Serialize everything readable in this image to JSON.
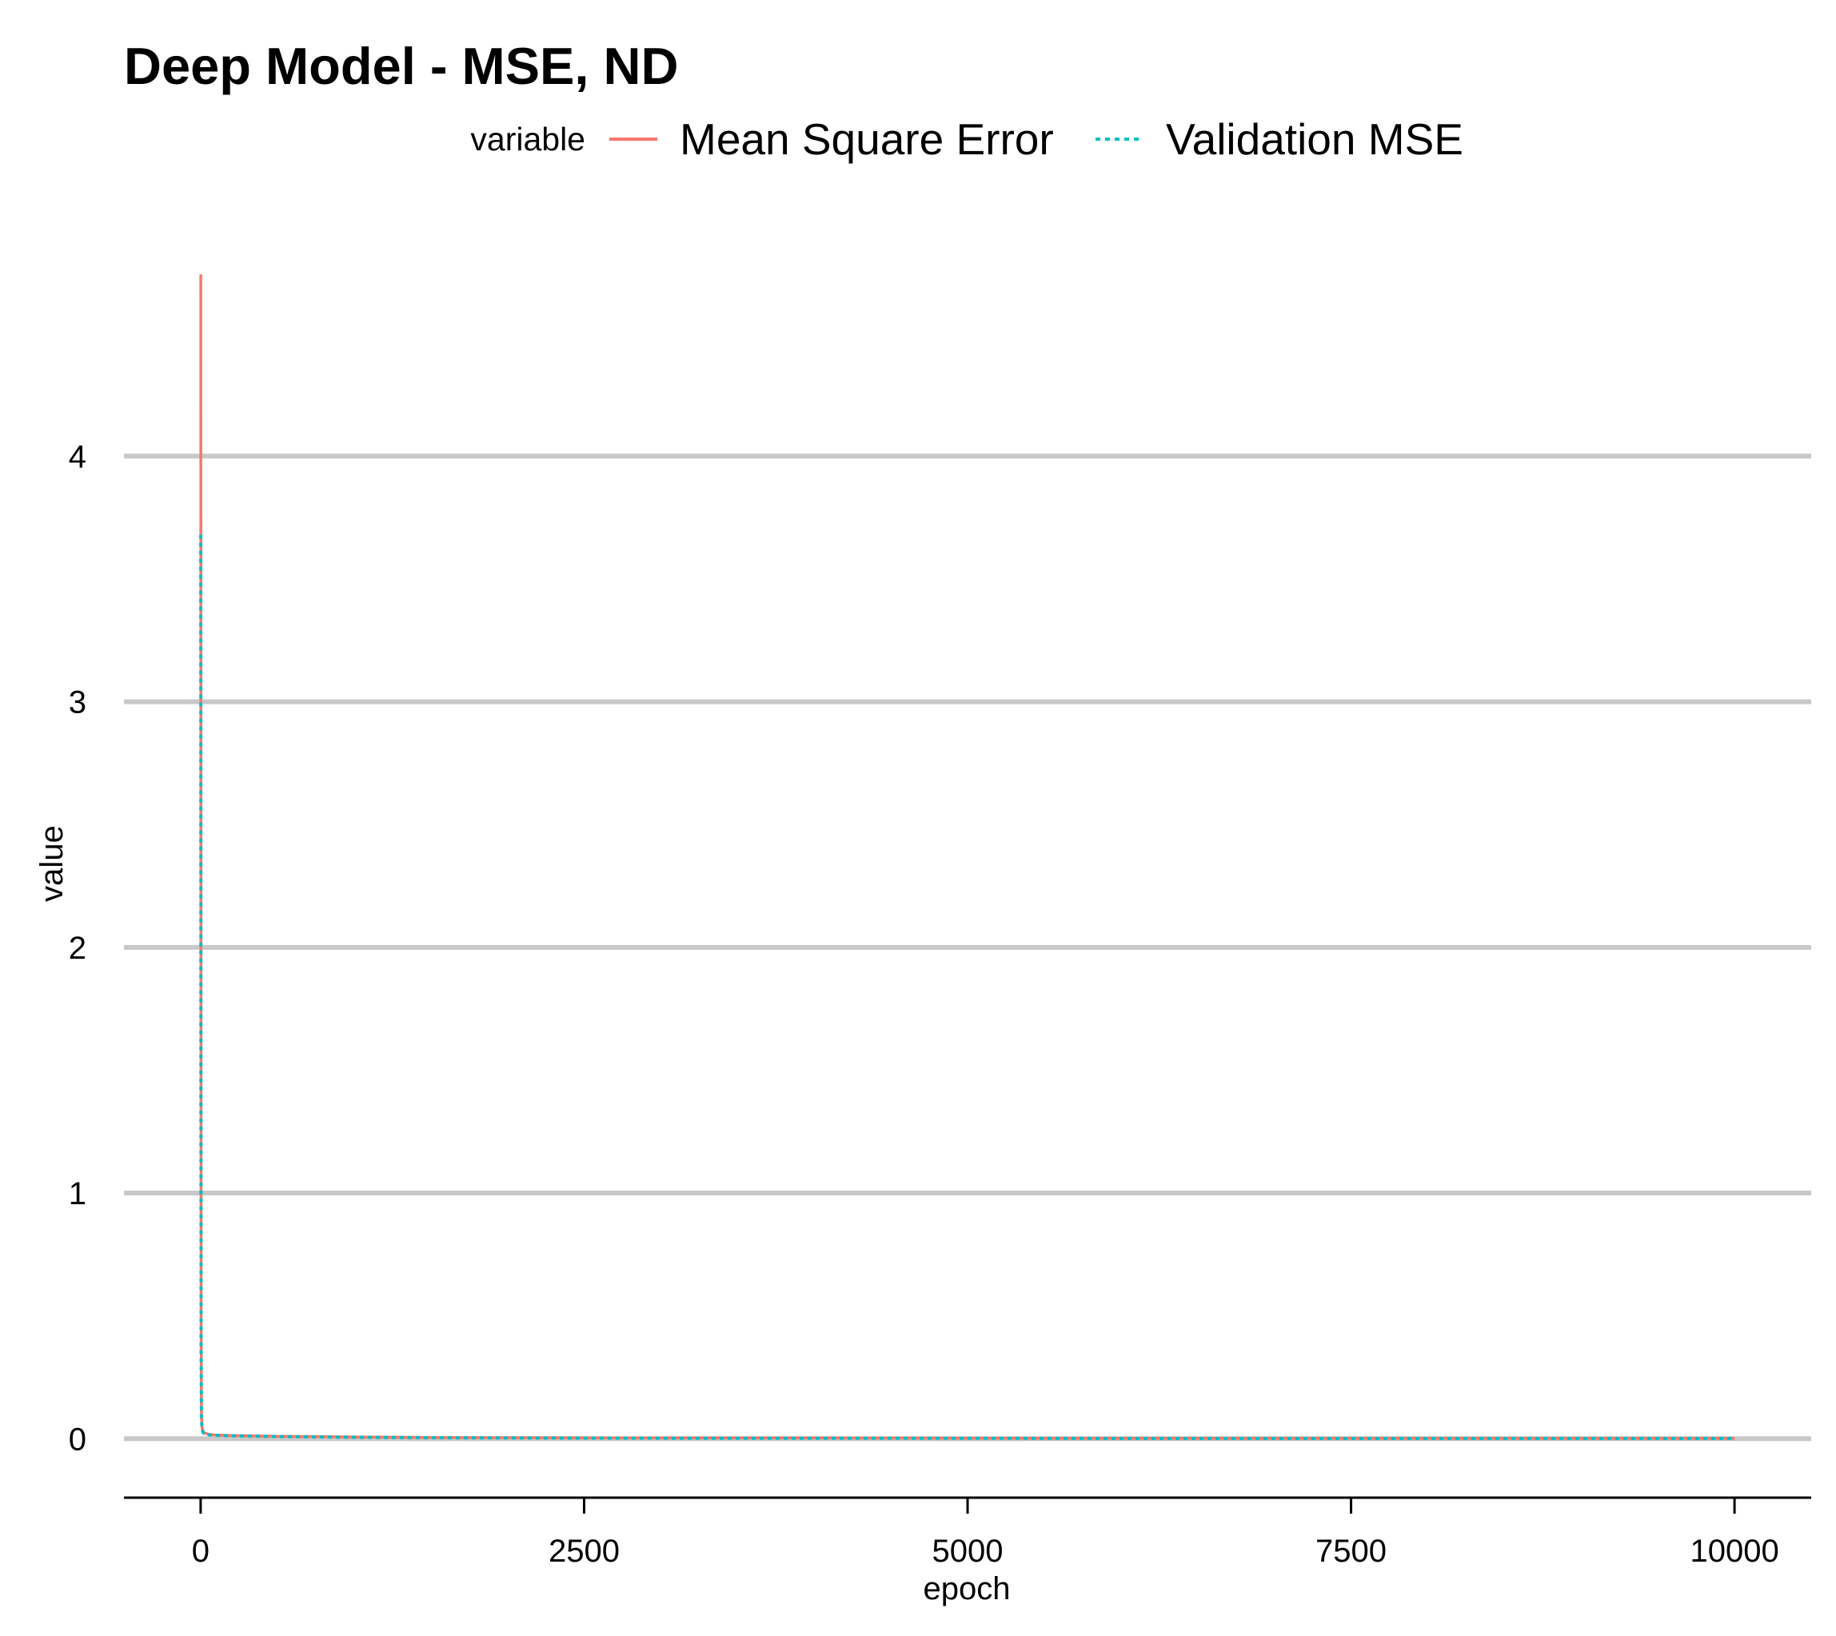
{
  "chart_data": {
    "type": "line",
    "title": "Deep Model - MSE, ND",
    "xlabel": "epoch",
    "ylabel": "value",
    "xlim": [
      -500,
      10500
    ],
    "ylim": [
      -0.24,
      4.75
    ],
    "x_ticks": [
      0,
      2500,
      5000,
      7500,
      10000
    ],
    "y_ticks": [
      0,
      1,
      2,
      3,
      4
    ],
    "grid": "horizontal major",
    "legend": {
      "title": "variable",
      "placement": "top"
    },
    "colors": {
      "mse": "#F8766D",
      "val": "#00BFC4",
      "grid": "#C8C8C8",
      "axis": "#000000"
    },
    "series": [
      {
        "name": "Mean Square Error",
        "style": "solid",
        "x": [
          1,
          2,
          3,
          5,
          10,
          20,
          50,
          100,
          200,
          300,
          500,
          800,
          1000,
          1500,
          2000,
          3000,
          4000,
          5000,
          6000,
          7000,
          8000,
          9000,
          10000
        ],
        "y": [
          4.74,
          2.0,
          0.5,
          0.1,
          0.04,
          0.025,
          0.018,
          0.015,
          0.013,
          0.012,
          0.01,
          0.008,
          0.007,
          0.005,
          0.004,
          0.003,
          0.003,
          0.002,
          0.002,
          0.002,
          0.002,
          0.002,
          0.002
        ]
      },
      {
        "name": "Validation MSE",
        "style": "dotted",
        "x": [
          1,
          2,
          3,
          5,
          10,
          20,
          50,
          100,
          200,
          300,
          500,
          800,
          1000,
          1500,
          2000,
          3000,
          4000,
          5000,
          6000,
          7000,
          8000,
          9000,
          10000
        ],
        "y": [
          3.68,
          1.5,
          0.4,
          0.08,
          0.035,
          0.022,
          0.016,
          0.014,
          0.012,
          0.011,
          0.009,
          0.007,
          0.006,
          0.004,
          0.003,
          0.002,
          0.002,
          0.002,
          0.001,
          0.001,
          0.001,
          0.001,
          0.001
        ]
      }
    ]
  }
}
